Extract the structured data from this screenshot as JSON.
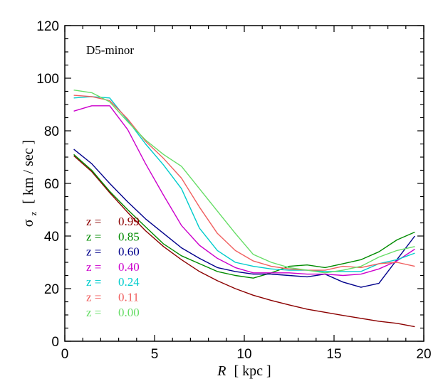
{
  "chart_data": {
    "type": "line",
    "annotation": "D5-minor",
    "xlabel_var": "R",
    "xlabel_unit": "[ kpc ]",
    "ylabel_sym": "σ",
    "ylabel_sub": "z",
    "ylabel_unit": "[ km / sec ]",
    "xlim": [
      0,
      20
    ],
    "ylim": [
      0,
      120
    ],
    "xticks": [
      0,
      5,
      10,
      15,
      20
    ],
    "yticks": [
      0,
      20,
      40,
      60,
      80,
      100,
      120
    ],
    "x": [
      0.5,
      1.5,
      2.5,
      3.5,
      4.5,
      5.5,
      6.5,
      7.5,
      8.5,
      9.5,
      10.5,
      11.5,
      12.5,
      13.5,
      14.5,
      15.5,
      16.5,
      17.5,
      18.5,
      19.5
    ],
    "legend_prefix": "z =",
    "series": [
      {
        "name": "0.99",
        "color": "#8b0000",
        "values": [
          70.5,
          64.5,
          56.5,
          49,
          42,
          36,
          31,
          26.5,
          23,
          20,
          17.5,
          15.5,
          13.8,
          12.2,
          11,
          9.8,
          8.7,
          7.6,
          6.8,
          5.5
        ]
      },
      {
        "name": "0.85",
        "color": "#008b00",
        "values": [
          71,
          65,
          57,
          50,
          43.5,
          37,
          32.5,
          29.5,
          26.5,
          25,
          24,
          26,
          28.5,
          29,
          28,
          29.5,
          31,
          34,
          38.5,
          41.5
        ]
      },
      {
        "name": "0.60",
        "color": "#00008b",
        "values": [
          73,
          67.5,
          60,
          53,
          46.5,
          41,
          35.5,
          31.5,
          28,
          26.5,
          25.5,
          25.5,
          25,
          24.5,
          25.5,
          22.5,
          20.5,
          22,
          31,
          40
        ]
      },
      {
        "name": "0.40",
        "color": "#cc00cc",
        "values": [
          87.5,
          89.5,
          89.5,
          80.5,
          67.5,
          55.5,
          44,
          36.5,
          31.5,
          28,
          26,
          26,
          26,
          25.5,
          25.5,
          25,
          25.5,
          27.5,
          30.5,
          35
        ]
      },
      {
        "name": "0.24",
        "color": "#00cccc",
        "values": [
          92.5,
          93,
          92.5,
          84,
          75,
          67,
          58,
          43,
          34.5,
          30,
          28.5,
          27.5,
          27,
          27,
          26.5,
          26.5,
          26.5,
          29.5,
          31,
          33.5
        ]
      },
      {
        "name": "0.11",
        "color": "#f06060",
        "values": [
          93.5,
          93,
          91.5,
          84.5,
          76,
          69.5,
          62,
          51,
          41,
          34.5,
          30.5,
          28.5,
          27.5,
          27,
          27,
          28.5,
          28,
          29.5,
          30,
          28.5
        ]
      },
      {
        "name": "0.00",
        "color": "#66dd66",
        "values": [
          95.5,
          94.5,
          91,
          83.5,
          76.5,
          71,
          66.5,
          58,
          49.5,
          41,
          33,
          30,
          28,
          27,
          26,
          27,
          28.5,
          32,
          34.5,
          36
        ]
      }
    ]
  }
}
